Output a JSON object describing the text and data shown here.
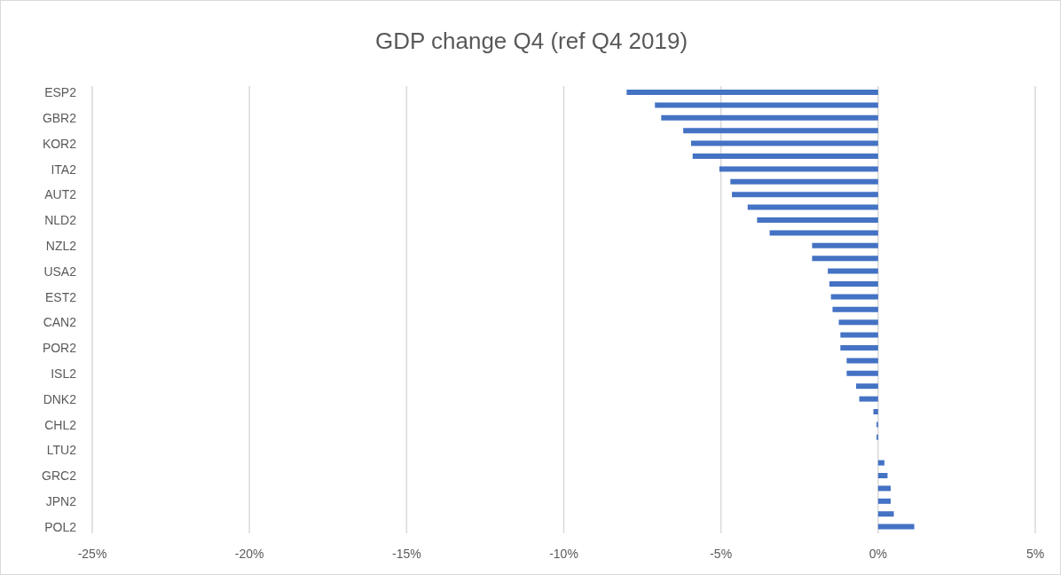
{
  "chart_data": {
    "type": "bar",
    "orientation": "horizontal",
    "title": "GDP change Q4 (ref Q4 2019)",
    "categories": [
      "ESP2",
      null,
      "GBR2",
      null,
      "KOR2",
      null,
      "ITA2",
      null,
      "AUT2",
      null,
      "NLD2",
      null,
      "NZL2",
      null,
      "USA2",
      null,
      "EST2",
      null,
      "CAN2",
      null,
      "POR2",
      null,
      "ISL2",
      null,
      "DNK2",
      null,
      "CHL2",
      null,
      "LTU2",
      null,
      "GRC2",
      null,
      "JPN2",
      null,
      "POL2"
    ],
    "values": [
      -8.0,
      -7.1,
      -6.9,
      -6.2,
      -5.95,
      -5.9,
      -5.05,
      -4.7,
      -4.65,
      -4.15,
      -3.85,
      -3.45,
      -2.1,
      -2.1,
      -1.6,
      -1.55,
      -1.5,
      -1.45,
      -1.25,
      -1.2,
      -1.2,
      -1.0,
      -1.0,
      -0.7,
      -0.6,
      -0.15,
      -0.05,
      -0.05,
      null,
      0.2,
      0.3,
      0.4,
      0.4,
      0.5,
      1.15
    ],
    "color": "#4472c4",
    "xlim": [
      -25,
      5
    ],
    "xticks": [
      {
        "value": -25,
        "label": "-25%"
      },
      {
        "value": -20,
        "label": "-20%"
      },
      {
        "value": -15,
        "label": "-15%"
      },
      {
        "value": -10,
        "label": "-10%"
      },
      {
        "value": -5,
        "label": "-5%"
      },
      {
        "value": 0,
        "label": "0%"
      },
      {
        "value": 5,
        "label": "5%"
      }
    ],
    "grid": "x",
    "legend": false
  }
}
